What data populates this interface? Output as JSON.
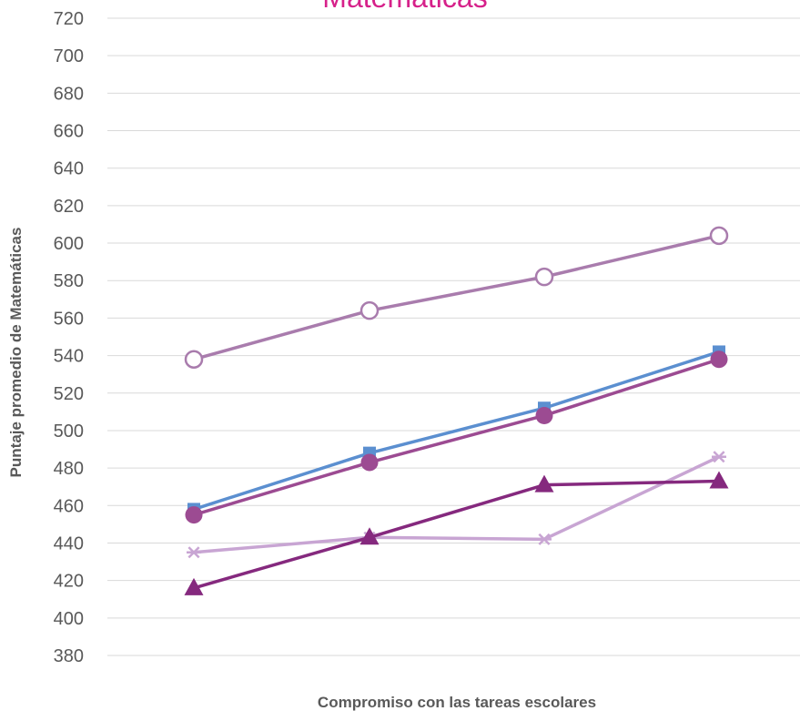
{
  "chart_data": {
    "type": "line",
    "title": "Matemáticas",
    "xlabel": "Compromiso con las tareas escolares",
    "ylabel": "Puntaje promedio de Matemáticas",
    "ylim": [
      380,
      720
    ],
    "yticks": [
      380,
      400,
      420,
      440,
      460,
      480,
      500,
      520,
      540,
      560,
      580,
      600,
      620,
      640,
      660,
      680,
      700,
      720
    ],
    "categories": [
      "",
      "",
      "",
      ""
    ],
    "grid": true,
    "series": [
      {
        "values": [
          538,
          564,
          582,
          604
        ],
        "color": "#a97cad",
        "marker": "circle-open"
      },
      {
        "values": [
          458,
          488,
          512,
          542
        ],
        "color": "#5b8fd0",
        "marker": "square"
      },
      {
        "values": [
          455,
          483,
          508,
          538
        ],
        "color": "#9c4b92",
        "marker": "circle"
      },
      {
        "values": [
          435,
          443,
          442,
          486
        ],
        "color": "#c8a5d3",
        "marker": "star"
      },
      {
        "values": [
          416,
          443,
          471,
          473
        ],
        "color": "#85297e",
        "marker": "triangle"
      }
    ],
    "title_color": "#d6218a"
  }
}
